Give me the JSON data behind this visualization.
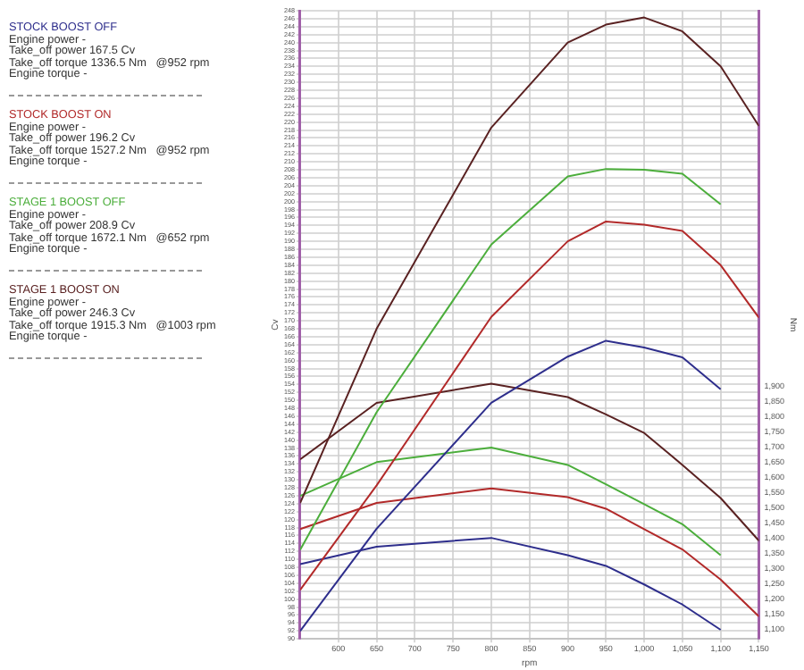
{
  "chart_data": {
    "type": "line",
    "xlabel": "rpm",
    "ylabel": "Cv",
    "y2label": "Nm",
    "legend": "left",
    "grid": true,
    "x": [
      550,
      650,
      800,
      900,
      950,
      1000,
      1050,
      1100,
      1150
    ],
    "xlim": [
      550,
      1150
    ],
    "xticks": [
      600,
      650,
      700,
      750,
      800,
      850,
      900,
      950,
      {
        "value": 1000,
        "label": "1,000"
      },
      {
        "value": 1050,
        "label": "1,050"
      },
      {
        "value": 1100,
        "label": "1,100"
      },
      {
        "value": 1150,
        "label": "1,150"
      }
    ],
    "ylim": [
      90,
      248
    ],
    "yticks": [
      90,
      92,
      94,
      96,
      98,
      100,
      102,
      104,
      106,
      108,
      110,
      112,
      114,
      116,
      118,
      120,
      122,
      124,
      126,
      128,
      130,
      132,
      134,
      136,
      138,
      140,
      142,
      144,
      146,
      148,
      150,
      152,
      154,
      156,
      158,
      160,
      162,
      164,
      166,
      168,
      170,
      172,
      174,
      176,
      178,
      180,
      182,
      184,
      186,
      188,
      190,
      192,
      194,
      196,
      198,
      200,
      202,
      204,
      206,
      208,
      210,
      212,
      214,
      216,
      218,
      220,
      222,
      224,
      226,
      228,
      230,
      232,
      234,
      236,
      238,
      240,
      242,
      244,
      246,
      248
    ],
    "y2lim": [
      1070,
      3135
    ],
    "y2ticks": [
      {
        "value": 1100,
        "label": "1,100"
      },
      {
        "value": 1150,
        "label": "1,150"
      },
      {
        "value": 1200,
        "label": "1,200"
      },
      {
        "value": 1250,
        "label": "1,250"
      },
      {
        "value": 1300,
        "label": "1,300"
      },
      {
        "value": 1350,
        "label": "1,350"
      },
      {
        "value": 1400,
        "label": "1,400"
      },
      {
        "value": 1450,
        "label": "1,450"
      },
      {
        "value": 1500,
        "label": "1,500"
      },
      {
        "value": 1550,
        "label": "1,550"
      },
      {
        "value": 1600,
        "label": "1,600"
      },
      {
        "value": 1650,
        "label": "1,650"
      },
      {
        "value": 1700,
        "label": "1,700"
      },
      {
        "value": 1750,
        "label": "1,750"
      },
      {
        "value": 1800,
        "label": "1,800"
      },
      {
        "value": 1850,
        "label": "1,850"
      },
      {
        "value": 1900,
        "label": "1,900"
      }
    ],
    "series": [
      {
        "name": "STOCK BOOST OFF",
        "color": "#2e2e8c",
        "values": [
          92,
          117.7,
          149.4,
          161,
          165,
          163.3,
          160.8,
          152.8,
          null
        ]
      },
      {
        "name": "STOCK BOOST ON",
        "color": "#b22a2a",
        "values": [
          102.3,
          128.6,
          171,
          190,
          195,
          194.2,
          192.6,
          184,
          170.8
        ]
      },
      {
        "name": "STAGE 1 BOOST OFF",
        "color": "#4cae3c",
        "values": [
          112.4,
          147,
          189.2,
          206.3,
          208.2,
          208,
          207,
          199.3,
          null
        ]
      },
      {
        "name": "STAGE 1 BOOST ON",
        "color": "#5a2222",
        "values": [
          124.2,
          168,
          218.6,
          240,
          244.5,
          246.3,
          242.8,
          234,
          219
        ]
      },
      {
        "color": "#2e2e8c",
        "axis": "y2",
        "values": [
          1316,
          1373,
          1402,
          1345,
          1310,
          1249,
          1183,
          1100,
          null
        ]
      },
      {
        "color": "#b22a2a",
        "axis": "y2",
        "values": [
          1431,
          1517,
          1565,
          1536,
          1498,
          1431,
          1364,
          1265,
          1144
        ]
      },
      {
        "color": "#4cae3c",
        "axis": "y2",
        "values": [
          1540,
          1651,
          1699,
          1642,
          1578,
          1513,
          1447,
          1345,
          null
        ]
      },
      {
        "color": "#5a2222",
        "axis": "y2",
        "values": [
          1660,
          1846,
          1909,
          1865,
          1808,
          1747,
          1642,
          1533,
          1393
        ]
      }
    ],
    "annotations": [
      "Engine power -",
      "Take_off power 167.5 Cv",
      "Take_off torque 1336.5 Nm   @952 rpm",
      "Engine torque -",
      "Engine power -",
      "Take_off power 196.2 Cv",
      "Take_off torque 1527.2 Nm   @952 rpm",
      "Engine torque -",
      "Engine power -",
      "Take_off power 208.9 Cv",
      "Take_off torque 1672.1 Nm   @652 rpm",
      "Engine torque -",
      "Engine power -",
      "Take_off power 246.3 Cv",
      "Take_off torque 1915.3 Nm   @1003 rpm",
      "Engine torque -"
    ]
  }
}
